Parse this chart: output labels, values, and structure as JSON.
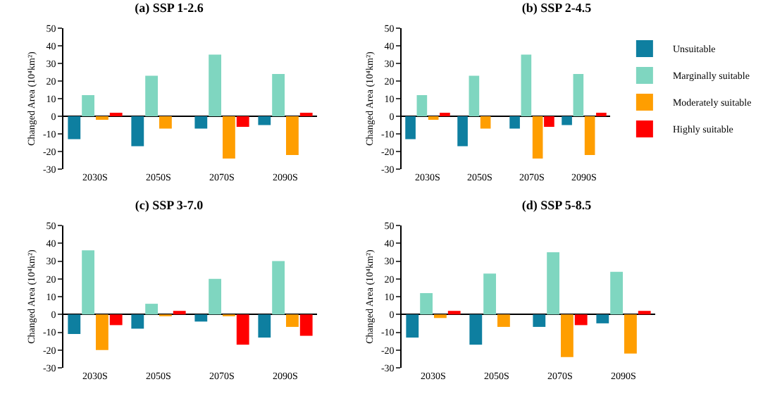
{
  "chart_data": [
    {
      "type": "bar",
      "title": "(a) SSP 1-2.6",
      "ylabel": "Changed Area (10⁴km²)",
      "categories": [
        "2030S",
        "2050S",
        "2070S",
        "2090S"
      ],
      "ylim": [
        -30,
        50
      ],
      "yticks": [
        -30,
        -20,
        -10,
        0,
        10,
        20,
        30,
        40,
        50
      ],
      "legend": false,
      "series": [
        {
          "color": "#0e7fa0",
          "values": [
            -13,
            -17,
            -7,
            -5
          ]
        },
        {
          "color": "#7fd6c0",
          "values": [
            12,
            23,
            35,
            24
          ]
        },
        {
          "color": "#ff9e00",
          "values": [
            -2,
            -7,
            -24,
            -22
          ]
        },
        {
          "color": "#ff0000",
          "values": [
            2,
            0,
            -6,
            2
          ]
        }
      ]
    },
    {
      "type": "bar",
      "title": "(b) SSP 2-4.5",
      "ylabel": "Changed Area (10⁴km²)",
      "categories": [
        "2030S",
        "2050S",
        "2070S",
        "2090S"
      ],
      "ylim": [
        -30,
        50
      ],
      "yticks": [
        -30,
        -20,
        -10,
        0,
        10,
        20,
        30,
        40,
        50
      ],
      "legend": "right",
      "series": [
        {
          "name": "Unsuitable",
          "color": "#0e7fa0",
          "values": [
            -13,
            -17,
            -7,
            -5
          ]
        },
        {
          "name": "Marginally suitable",
          "color": "#7fd6c0",
          "values": [
            12,
            23,
            35,
            24
          ]
        },
        {
          "name": "Moderately suitable",
          "color": "#ff9e00",
          "values": [
            -2,
            -7,
            -24,
            -22
          ]
        },
        {
          "name": "Highly suitable",
          "color": "#ff0000",
          "values": [
            2,
            0,
            -6,
            2
          ]
        }
      ]
    },
    {
      "type": "bar",
      "title": "(c) SSP 3-7.0",
      "ylabel": "Changed Area (10⁴km²)",
      "categories": [
        "2030S",
        "2050S",
        "2070S",
        "2090S"
      ],
      "ylim": [
        -30,
        50
      ],
      "yticks": [
        -30,
        -20,
        -10,
        0,
        10,
        20,
        30,
        40,
        50
      ],
      "legend": false,
      "series": [
        {
          "color": "#0e7fa0",
          "values": [
            -11,
            -8,
            -4,
            -13
          ]
        },
        {
          "color": "#7fd6c0",
          "values": [
            36,
            6,
            20,
            30
          ]
        },
        {
          "color": "#ff9e00",
          "values": [
            -20,
            -1,
            -1,
            -7
          ]
        },
        {
          "color": "#ff0000",
          "values": [
            -6,
            2,
            -17,
            -12
          ]
        }
      ]
    },
    {
      "type": "bar",
      "title": "(d) SSP 5-8.5",
      "ylabel": "Changed Area (10⁴km²)",
      "categories": [
        "2030S",
        "2050S",
        "2070S",
        "2090S"
      ],
      "ylim": [
        -30,
        50
      ],
      "yticks": [
        -30,
        -20,
        -10,
        0,
        10,
        20,
        30,
        40,
        50
      ],
      "legend": false,
      "series": [
        {
          "color": "#0e7fa0",
          "values": [
            -13,
            -17,
            -7,
            -5
          ]
        },
        {
          "color": "#7fd6c0",
          "values": [
            12,
            23,
            35,
            24
          ]
        },
        {
          "color": "#ff9e00",
          "values": [
            -2,
            -7,
            -24,
            -22
          ]
        },
        {
          "color": "#ff0000",
          "values": [
            2,
            0,
            -6,
            2
          ]
        }
      ]
    }
  ]
}
